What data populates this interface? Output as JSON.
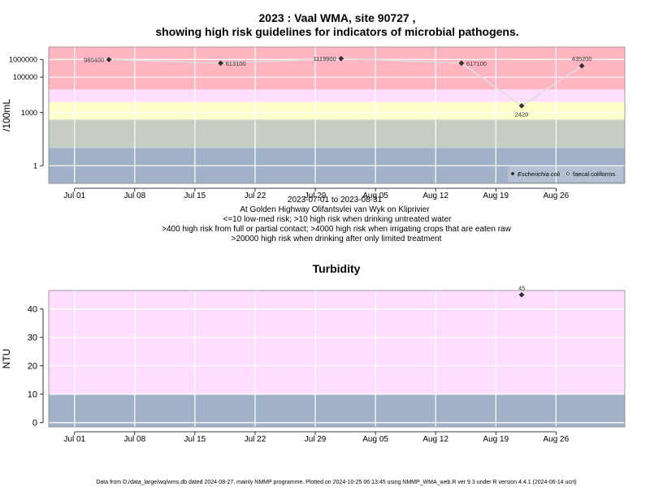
{
  "title": {
    "line1": "2023 : Vaal WMA, site 90727 ,",
    "line2": "showing high risk guidelines for indicators of microbial pathogens."
  },
  "info_lines": [
    "2023-07-01 to 2023-08-31",
    "At Golden Highway Olifantsvlei van Wyk on Kliprivier",
    "<=10 low-med risk; >10 high risk when drinking untreated water",
    ">400 high risk from full or partial contact; >4000 high risk when irrigating crops that are eaten raw",
    ">20000 high risk when drinking after only limited treatment"
  ],
  "footer": "Data from D:/data_large/wq/wms.db dated 2024-08-27, mainly NMMP programme. Plotted on 2024-10-25 06:13:45 using NMMP_WMA_web.R ver 9.3 under R version 4.4.1 (2024-06-14 ucrt)",
  "colors": {
    "band_red": "#FFB6C1",
    "band_pink": "#FFDDFF",
    "band_yellow": "#FFFFCC",
    "band_green": "#C5CEC0",
    "band_blue": "#A1B2C8",
    "grid": "#ffffff",
    "line": "#DDDDDD",
    "point": "#333333"
  },
  "chart_data": [
    {
      "type": "line",
      "title": "",
      "xlabel": "",
      "ylabel": "/100mL",
      "y_scale": "log",
      "ylim": [
        0.1,
        5000000
      ],
      "x_range": [
        "2023-06-28",
        "2023-09-03"
      ],
      "x_ticks": [
        {
          "date": "2023-07-01",
          "label": "Jul 01"
        },
        {
          "date": "2023-07-08",
          "label": "Jul 08"
        },
        {
          "date": "2023-07-15",
          "label": "Jul 15"
        },
        {
          "date": "2023-07-22",
          "label": "Jul 22"
        },
        {
          "date": "2023-07-29",
          "label": "Jul 29"
        },
        {
          "date": "2023-08-05",
          "label": "Aug 05"
        },
        {
          "date": "2023-08-12",
          "label": "Aug 12"
        },
        {
          "date": "2023-08-19",
          "label": "Aug 19"
        },
        {
          "date": "2023-08-26",
          "label": "Aug 26"
        }
      ],
      "y_ticks": [
        {
          "value": 1,
          "label": "1"
        },
        {
          "value": 1000,
          "label": "1000"
        },
        {
          "value": 100000,
          "label": "100000"
        },
        {
          "value": 1000000,
          "label": "1000000"
        }
      ],
      "risk_bands": [
        {
          "from": 20000,
          "to": 5000000,
          "color": "band_red"
        },
        {
          "from": 4000,
          "to": 20000,
          "color": "band_pink"
        },
        {
          "from": 400,
          "to": 4000,
          "color": "band_yellow"
        },
        {
          "from": 10,
          "to": 400,
          "color": "band_green"
        },
        {
          "from": 0.1,
          "to": 10,
          "color": "band_blue"
        }
      ],
      "series": [
        {
          "name": "Escherichia coli",
          "points": [
            {
              "x": "2023-07-05",
              "y": 980400,
              "label": "980400",
              "label_side": "left"
            },
            {
              "x": "2023-07-18",
              "y": 613100,
              "label": "613100",
              "label_side": "right"
            },
            {
              "x": "2023-08-01",
              "y": 1119900,
              "label": "1119900",
              "label_side": "left"
            },
            {
              "x": "2023-08-15",
              "y": 617100,
              "label": "617100",
              "label_side": "right"
            },
            {
              "x": "2023-08-22",
              "y": 2420,
              "label": "2420",
              "label_side": "below"
            },
            {
              "x": "2023-08-29",
              "y": 435200,
              "label": "435200",
              "label_side": "above"
            }
          ]
        }
      ],
      "legend": {
        "position": "bottom-right",
        "items": [
          "Escherichia coli",
          "faecal coliforms"
        ]
      }
    },
    {
      "type": "scatter",
      "title": "Turbidity",
      "xlabel": "",
      "ylabel": "NTU",
      "ylim": [
        -1.5,
        46.5
      ],
      "x_range": [
        "2023-06-28",
        "2023-09-03"
      ],
      "x_ticks": [
        {
          "date": "2023-07-01",
          "label": "Jul 01"
        },
        {
          "date": "2023-07-08",
          "label": "Jul 08"
        },
        {
          "date": "2023-07-15",
          "label": "Jul 15"
        },
        {
          "date": "2023-07-22",
          "label": "Jul 22"
        },
        {
          "date": "2023-07-29",
          "label": "Jul 29"
        },
        {
          "date": "2023-08-05",
          "label": "Aug 05"
        },
        {
          "date": "2023-08-12",
          "label": "Aug 12"
        },
        {
          "date": "2023-08-19",
          "label": "Aug 19"
        },
        {
          "date": "2023-08-26",
          "label": "Aug 26"
        }
      ],
      "y_ticks": [
        {
          "value": 0,
          "label": "0"
        },
        {
          "value": 10,
          "label": "10"
        },
        {
          "value": 20,
          "label": "20"
        },
        {
          "value": 30,
          "label": "30"
        },
        {
          "value": 40,
          "label": "40"
        }
      ],
      "risk_bands": [
        {
          "from": 10,
          "to": 46.5,
          "color": "band_pink"
        },
        {
          "from": -1.5,
          "to": 10,
          "color": "band_blue"
        }
      ],
      "series": [
        {
          "name": "",
          "points": [
            {
              "x": "2023-08-22",
              "y": 45,
              "label": "45",
              "label_side": "above"
            }
          ]
        }
      ]
    }
  ]
}
